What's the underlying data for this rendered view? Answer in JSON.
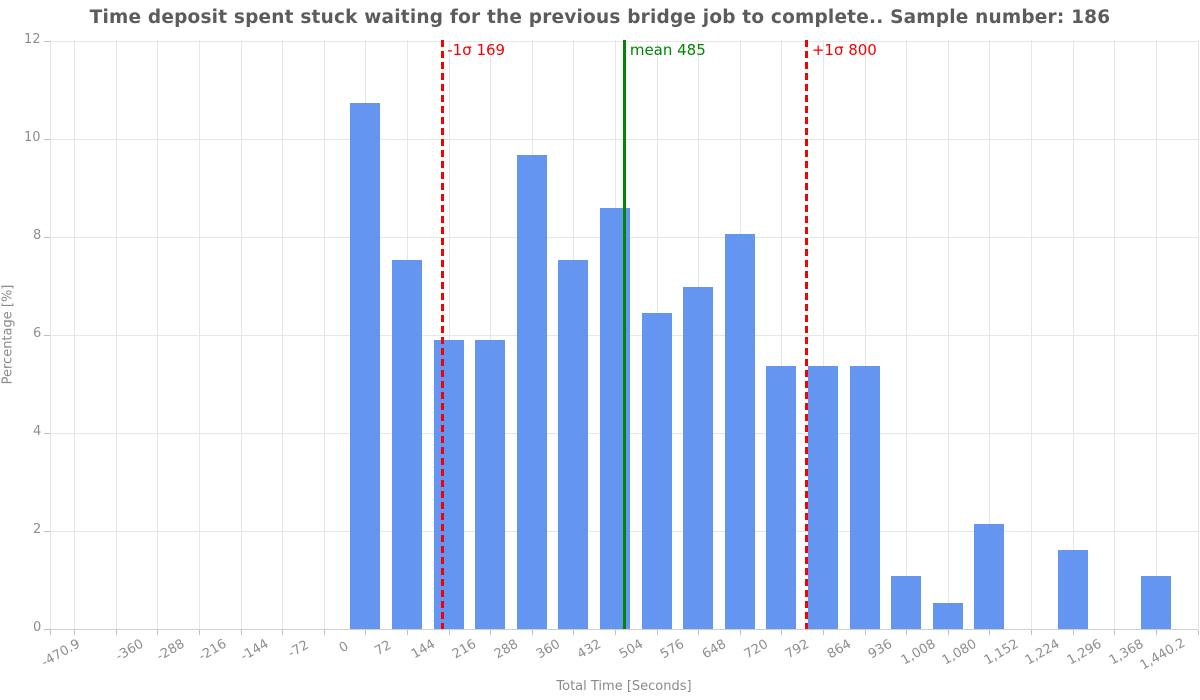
{
  "chart_data": {
    "type": "bar",
    "title": "Time deposit spent stuck waiting for the previous bridge job to complete.. Sample number: 186",
    "xlabel": "Total Time [Seconds]",
    "ylabel": "Percentage [%]",
    "sample_number": "186",
    "bin_size": 72,
    "ylim": [
      0,
      12
    ],
    "grid": true,
    "legend_position": "none",
    "bins": [
      {
        "range": "0-72",
        "center": 36,
        "pct": 10.75
      },
      {
        "range": "72-144",
        "center": 108,
        "pct": 7.53
      },
      {
        "range": "144-216",
        "center": 180,
        "pct": 5.91
      },
      {
        "range": "216-288",
        "center": 252,
        "pct": 5.91
      },
      {
        "range": "288-360",
        "center": 324,
        "pct": 9.68
      },
      {
        "range": "360-432",
        "center": 396,
        "pct": 7.53
      },
      {
        "range": "432-504",
        "center": 468,
        "pct": 8.6
      },
      {
        "range": "504-576",
        "center": 540,
        "pct": 6.45
      },
      {
        "range": "576-648",
        "center": 612,
        "pct": 6.99
      },
      {
        "range": "648-720",
        "center": 684,
        "pct": 8.06
      },
      {
        "range": "720-792",
        "center": 756,
        "pct": 5.38
      },
      {
        "range": "792-864",
        "center": 828,
        "pct": 5.38
      },
      {
        "range": "864-936",
        "center": 900,
        "pct": 5.38
      },
      {
        "range": "936-1008",
        "center": 972,
        "pct": 1.08
      },
      {
        "range": "1008-1080",
        "center": 1044,
        "pct": 0.54
      },
      {
        "range": "1080-1152",
        "center": 1116,
        "pct": 2.15
      },
      {
        "range": "1152-1224",
        "center": 1188,
        "pct": 0
      },
      {
        "range": "1224-1296",
        "center": 1260,
        "pct": 1.61
      },
      {
        "range": "1296-1368",
        "center": 1332,
        "pct": 0
      },
      {
        "range": "1368-1440.2",
        "center": 1404,
        "pct": 1.08
      }
    ],
    "x_ticks": [
      {
        "value": -470.9,
        "label": "-470.9"
      },
      {
        "value": -360,
        "label": "-360"
      },
      {
        "value": -288,
        "label": "-288"
      },
      {
        "value": -216,
        "label": "-216"
      },
      {
        "value": -144,
        "label": "-144"
      },
      {
        "value": -72,
        "label": "-72"
      },
      {
        "value": 0,
        "label": "0"
      },
      {
        "value": 72,
        "label": "72"
      },
      {
        "value": 144,
        "label": "144"
      },
      {
        "value": 216,
        "label": "216"
      },
      {
        "value": 288,
        "label": "288"
      },
      {
        "value": 360,
        "label": "360"
      },
      {
        "value": 432,
        "label": "432"
      },
      {
        "value": 504,
        "label": "504"
      },
      {
        "value": 576,
        "label": "576"
      },
      {
        "value": 648,
        "label": "648"
      },
      {
        "value": 720,
        "label": "720"
      },
      {
        "value": 792,
        "label": "792"
      },
      {
        "value": 864,
        "label": "864"
      },
      {
        "value": 936,
        "label": "936"
      },
      {
        "value": 1008,
        "label": "1,008"
      },
      {
        "value": 1080,
        "label": "1,080"
      },
      {
        "value": 1152,
        "label": "1,152"
      },
      {
        "value": 1224,
        "label": "1,224"
      },
      {
        "value": 1296,
        "label": "1,296"
      },
      {
        "value": 1368,
        "label": "1,368"
      },
      {
        "value": 1440.2,
        "label": "1,440.2"
      }
    ],
    "y_ticks": [
      {
        "value": 0,
        "label": "0"
      },
      {
        "value": 2,
        "label": "2"
      },
      {
        "value": 4,
        "label": "4"
      },
      {
        "value": 6,
        "label": "6"
      },
      {
        "value": 8,
        "label": "8"
      },
      {
        "value": 10,
        "label": "10"
      },
      {
        "value": 12,
        "label": "12"
      }
    ],
    "annotation_lines": [
      {
        "name": "minus-1-sigma",
        "label": "-1σ 169",
        "value": 169,
        "color": "#f80000",
        "dashed": true
      },
      {
        "name": "mean",
        "label": "mean 485",
        "value": 485,
        "color": "#008600",
        "dashed": false
      },
      {
        "name": "plus-1-sigma",
        "label": "+1σ 800",
        "value": 800,
        "color": "#f80000",
        "dashed": true
      }
    ],
    "colors": {
      "bar": "#6496f1",
      "bar_rgba": "rgba(83,138,239,0.9)",
      "grid": "#e6e6e6",
      "axis_line": "#cfcfcf",
      "tick": "#c0c0c0",
      "tick_label": "#8e8e8e",
      "axis_title": "#8a8a8a",
      "title": "#5c5c5c"
    }
  }
}
